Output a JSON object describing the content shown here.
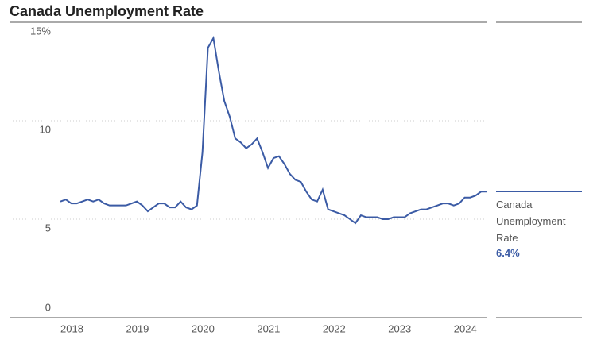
{
  "chart_data": {
    "type": "line",
    "title": "Canada Unemployment Rate",
    "categories": [
      "2018",
      null,
      null,
      null,
      null,
      null,
      null,
      null,
      null,
      null,
      null,
      null,
      "2019",
      null,
      null,
      null,
      null,
      null,
      null,
      null,
      null,
      null,
      null,
      null,
      "2020",
      null,
      null,
      null,
      null,
      null,
      null,
      null,
      null,
      null,
      null,
      null,
      "2021",
      null,
      null,
      null,
      null,
      null,
      null,
      null,
      null,
      null,
      null,
      null,
      "2022",
      null,
      null,
      null,
      null,
      null,
      null,
      null,
      null,
      null,
      null,
      null,
      "2023",
      null,
      null,
      null,
      null,
      null,
      null,
      null,
      null,
      null,
      null,
      null,
      "2024",
      null,
      null,
      null,
      null,
      null,
      null
    ],
    "series": [
      {
        "name": "Canada Unemployment Rate",
        "color": "#3b5ba5",
        "values": [
          5.9,
          6.0,
          5.8,
          5.8,
          5.9,
          6.0,
          5.9,
          6.0,
          5.8,
          5.7,
          5.7,
          5.7,
          5.7,
          5.8,
          5.9,
          5.7,
          5.4,
          5.6,
          5.8,
          5.8,
          5.6,
          5.6,
          5.9,
          5.6,
          5.5,
          5.7,
          8.4,
          13.7,
          14.2,
          12.5,
          11.0,
          10.2,
          9.1,
          8.9,
          8.6,
          8.8,
          9.1,
          8.4,
          7.6,
          8.1,
          8.2,
          7.8,
          7.3,
          7.0,
          6.9,
          6.4,
          6.0,
          5.9,
          6.5,
          5.5,
          5.4,
          5.3,
          5.2,
          5.0,
          4.8,
          5.2,
          5.1,
          5.1,
          5.1,
          5.0,
          5.0,
          5.1,
          5.1,
          5.1,
          5.3,
          5.4,
          5.5,
          5.5,
          5.6,
          5.7,
          5.8,
          5.8,
          5.7,
          5.8,
          6.1,
          6.1,
          6.2,
          6.4,
          6.4
        ],
        "value_labels": [
          null,
          null,
          null,
          null,
          null,
          null,
          null,
          null,
          null,
          null,
          null,
          null,
          null,
          null,
          null,
          null,
          null,
          null,
          null,
          null,
          null,
          null,
          null,
          null,
          null,
          null,
          null,
          null,
          null,
          null,
          null,
          null,
          null,
          null,
          null,
          null,
          null,
          null,
          null,
          null,
          null,
          null,
          null,
          null,
          null,
          null,
          null,
          null,
          null,
          null,
          null,
          null,
          null,
          null,
          null,
          null,
          null,
          null,
          null,
          null,
          null,
          null,
          null,
          null,
          null,
          null,
          null,
          null,
          null,
          null,
          null,
          null,
          null,
          null,
          null,
          null,
          null,
          null,
          "6.4%"
        ]
      }
    ],
    "ylim": [
      0,
      15
    ],
    "yticks": [
      0,
      5,
      10,
      {
        "value": 15,
        "label": "15%"
      }
    ],
    "grid": true
  }
}
